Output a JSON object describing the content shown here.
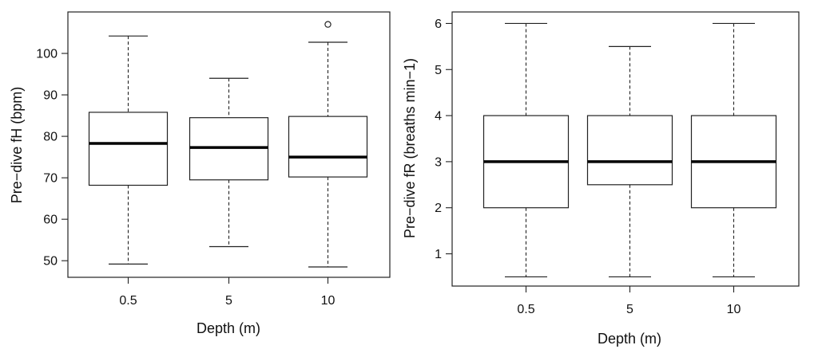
{
  "chart_data": [
    {
      "type": "boxplot",
      "xlabel": "Depth (m)",
      "ylabel": "Pre−dive fH (bpm)",
      "categories": [
        "0.5",
        "5",
        "10"
      ],
      "ylim": [
        46,
        110
      ],
      "yticks": [
        50,
        60,
        70,
        80,
        90,
        100
      ],
      "boxes": [
        {
          "category": "0.5",
          "whisker_low": 49.2,
          "q1": 68.2,
          "median": 78.3,
          "q3": 85.8,
          "whisker_high": 104.2,
          "outliers": []
        },
        {
          "category": "5",
          "whisker_low": 53.4,
          "q1": 69.5,
          "median": 77.3,
          "q3": 84.5,
          "whisker_high": 94.0,
          "outliers": []
        },
        {
          "category": "10",
          "whisker_low": 48.5,
          "q1": 70.2,
          "median": 75.0,
          "q3": 84.8,
          "whisker_high": 102.7,
          "outliers": [
            107.0
          ]
        }
      ],
      "grid": false
    },
    {
      "type": "boxplot",
      "xlabel": "Depth (m)",
      "ylabel": "Pre−dive fR (breaths min−1)",
      "categories": [
        "0.5",
        "5",
        "10"
      ],
      "ylim": [
        0.3,
        6.25
      ],
      "yticks": [
        1,
        2,
        3,
        4,
        5,
        6
      ],
      "boxes": [
        {
          "category": "0.5",
          "whisker_low": 0.5,
          "q1": 2.0,
          "median": 3.0,
          "q3": 4.0,
          "whisker_high": 6.0,
          "outliers": []
        },
        {
          "category": "5",
          "whisker_low": 0.5,
          "q1": 2.5,
          "median": 3.0,
          "q3": 4.0,
          "whisker_high": 5.5,
          "outliers": []
        },
        {
          "category": "10",
          "whisker_low": 0.5,
          "q1": 2.0,
          "median": 3.0,
          "q3": 4.0,
          "whisker_high": 6.0,
          "outliers": []
        }
      ],
      "grid": false
    }
  ]
}
